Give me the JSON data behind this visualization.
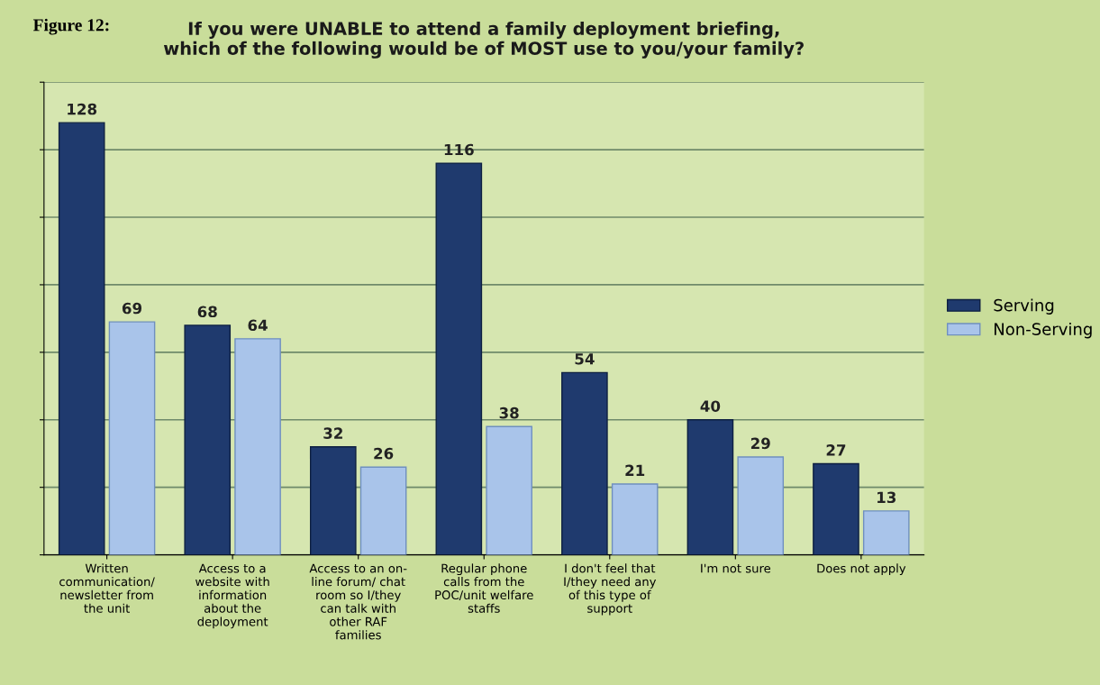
{
  "chart_data": {
    "type": "bar",
    "title": "If you were UNABLE to attend a family deployment briefing,\nwhich of the following would be of MOST use to you/your family?",
    "annotations": [
      "Figure 12:"
    ],
    "categories": [
      "Written\ncommunication/\nnewsletter from\nthe unit",
      "Access to a\nwebsite with\ninformation\nabout the\ndeployment",
      "Access to an on-\nline forum/ chat\nroom so I/they\ncan talk with\nother RAF\nfamilies",
      "Regular phone\ncalls from the\nPOC/unit welfare\nstaffs",
      "I don't feel that\nI/they need any\nof this type of\nsupport",
      "I'm not sure",
      "Does not apply"
    ],
    "series": [
      {
        "name": "Serving",
        "color": "#1f3a6e",
        "values": [
          128,
          68,
          32,
          116,
          54,
          40,
          27
        ]
      },
      {
        "name": "Non-Serving",
        "color": "#a9c4ea",
        "values": [
          69,
          64,
          26,
          38,
          21,
          29,
          13
        ]
      }
    ],
    "data_labels": true,
    "ylim": [
      0,
      140
    ],
    "yticks": [
      {
        "value": 0,
        "label": null
      },
      {
        "value": 20,
        "label": null
      },
      {
        "value": 40,
        "label": null
      },
      {
        "value": 60,
        "label": null
      },
      {
        "value": 80,
        "label": null
      },
      {
        "value": 100,
        "label": null
      },
      {
        "value": 120,
        "label": null
      },
      {
        "value": 140,
        "label": null
      }
    ],
    "tick_labels": "x",
    "grid": "y",
    "legend": "right"
  }
}
